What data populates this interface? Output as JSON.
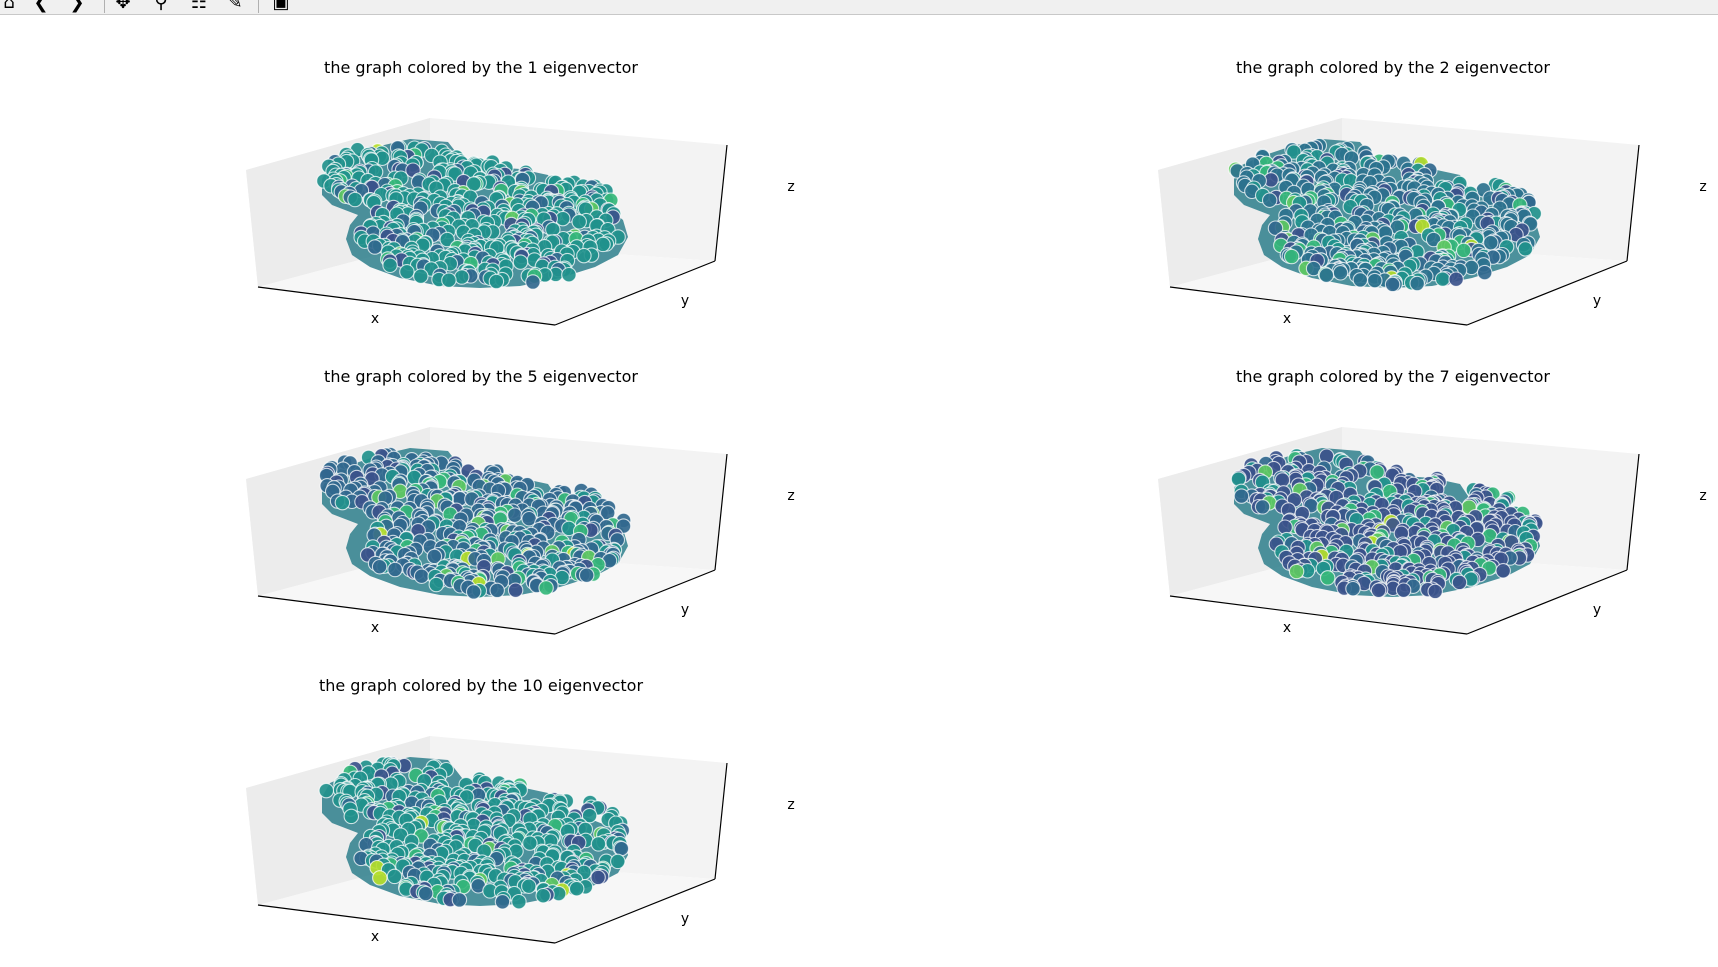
{
  "toolbar": {
    "buttons": [
      {
        "name": "home-button",
        "icon": "home-icon",
        "glyph": "⌂"
      },
      {
        "name": "back-button",
        "icon": "arrow-left-icon",
        "glyph": "❮"
      },
      {
        "name": "forward-button",
        "icon": "arrow-right-icon",
        "glyph": "❯"
      },
      {
        "name": "pan-button",
        "icon": "move-icon",
        "glyph": "✥"
      },
      {
        "name": "zoom-button",
        "icon": "magnifier-icon",
        "glyph": "⚲"
      },
      {
        "name": "subplots-button",
        "icon": "sliders-icon",
        "glyph": "☷"
      },
      {
        "name": "edit-axes-button",
        "icon": "chart-edit-icon",
        "glyph": "✎"
      },
      {
        "name": "save-button",
        "icon": "floppy-icon",
        "glyph": "▣"
      }
    ]
  },
  "colors": {
    "viridis": [
      "#440154",
      "#3b528b",
      "#31688e",
      "#21918c",
      "#1fa187",
      "#35b779",
      "#5ec962",
      "#b5de2b"
    ],
    "pane": "#f2f2f2",
    "marker_edge": "#ffffff"
  },
  "chart_data": [
    {
      "type": "scatter",
      "projection": "3d",
      "title": "the graph colored by the 1 eigenvector",
      "xlabel": "x",
      "ylabel": "y",
      "zlabel": "z",
      "dominant_color": "#21918c",
      "marker_edge": "#ffffff",
      "ticks": "none"
    },
    {
      "type": "scatter",
      "projection": "3d",
      "title": "the graph colored by the 2 eigenvector",
      "xlabel": "x",
      "ylabel": "y",
      "zlabel": "z",
      "dominant_color": "#2c728e",
      "marker_edge": "#ffffff",
      "ticks": "none"
    },
    {
      "type": "scatter",
      "projection": "3d",
      "title": "the graph colored by the 5 eigenvector",
      "xlabel": "x",
      "ylabel": "y",
      "zlabel": "z",
      "dominant_color": "#31688e",
      "marker_edge": "#ffffff",
      "ticks": "none"
    },
    {
      "type": "scatter",
      "projection": "3d",
      "title": "the graph colored by the 7 eigenvector",
      "xlabel": "x",
      "ylabel": "y",
      "zlabel": "z",
      "dominant_color": "#3b528b",
      "marker_edge": "#ffffff",
      "ticks": "none"
    },
    {
      "type": "scatter",
      "projection": "3d",
      "title": "the graph colored by the 10 eigenvector",
      "xlabel": "x",
      "ylabel": "y",
      "zlabel": "z",
      "dominant_color": "#21918c",
      "marker_edge": "#ffffff",
      "ticks": "none"
    }
  ]
}
